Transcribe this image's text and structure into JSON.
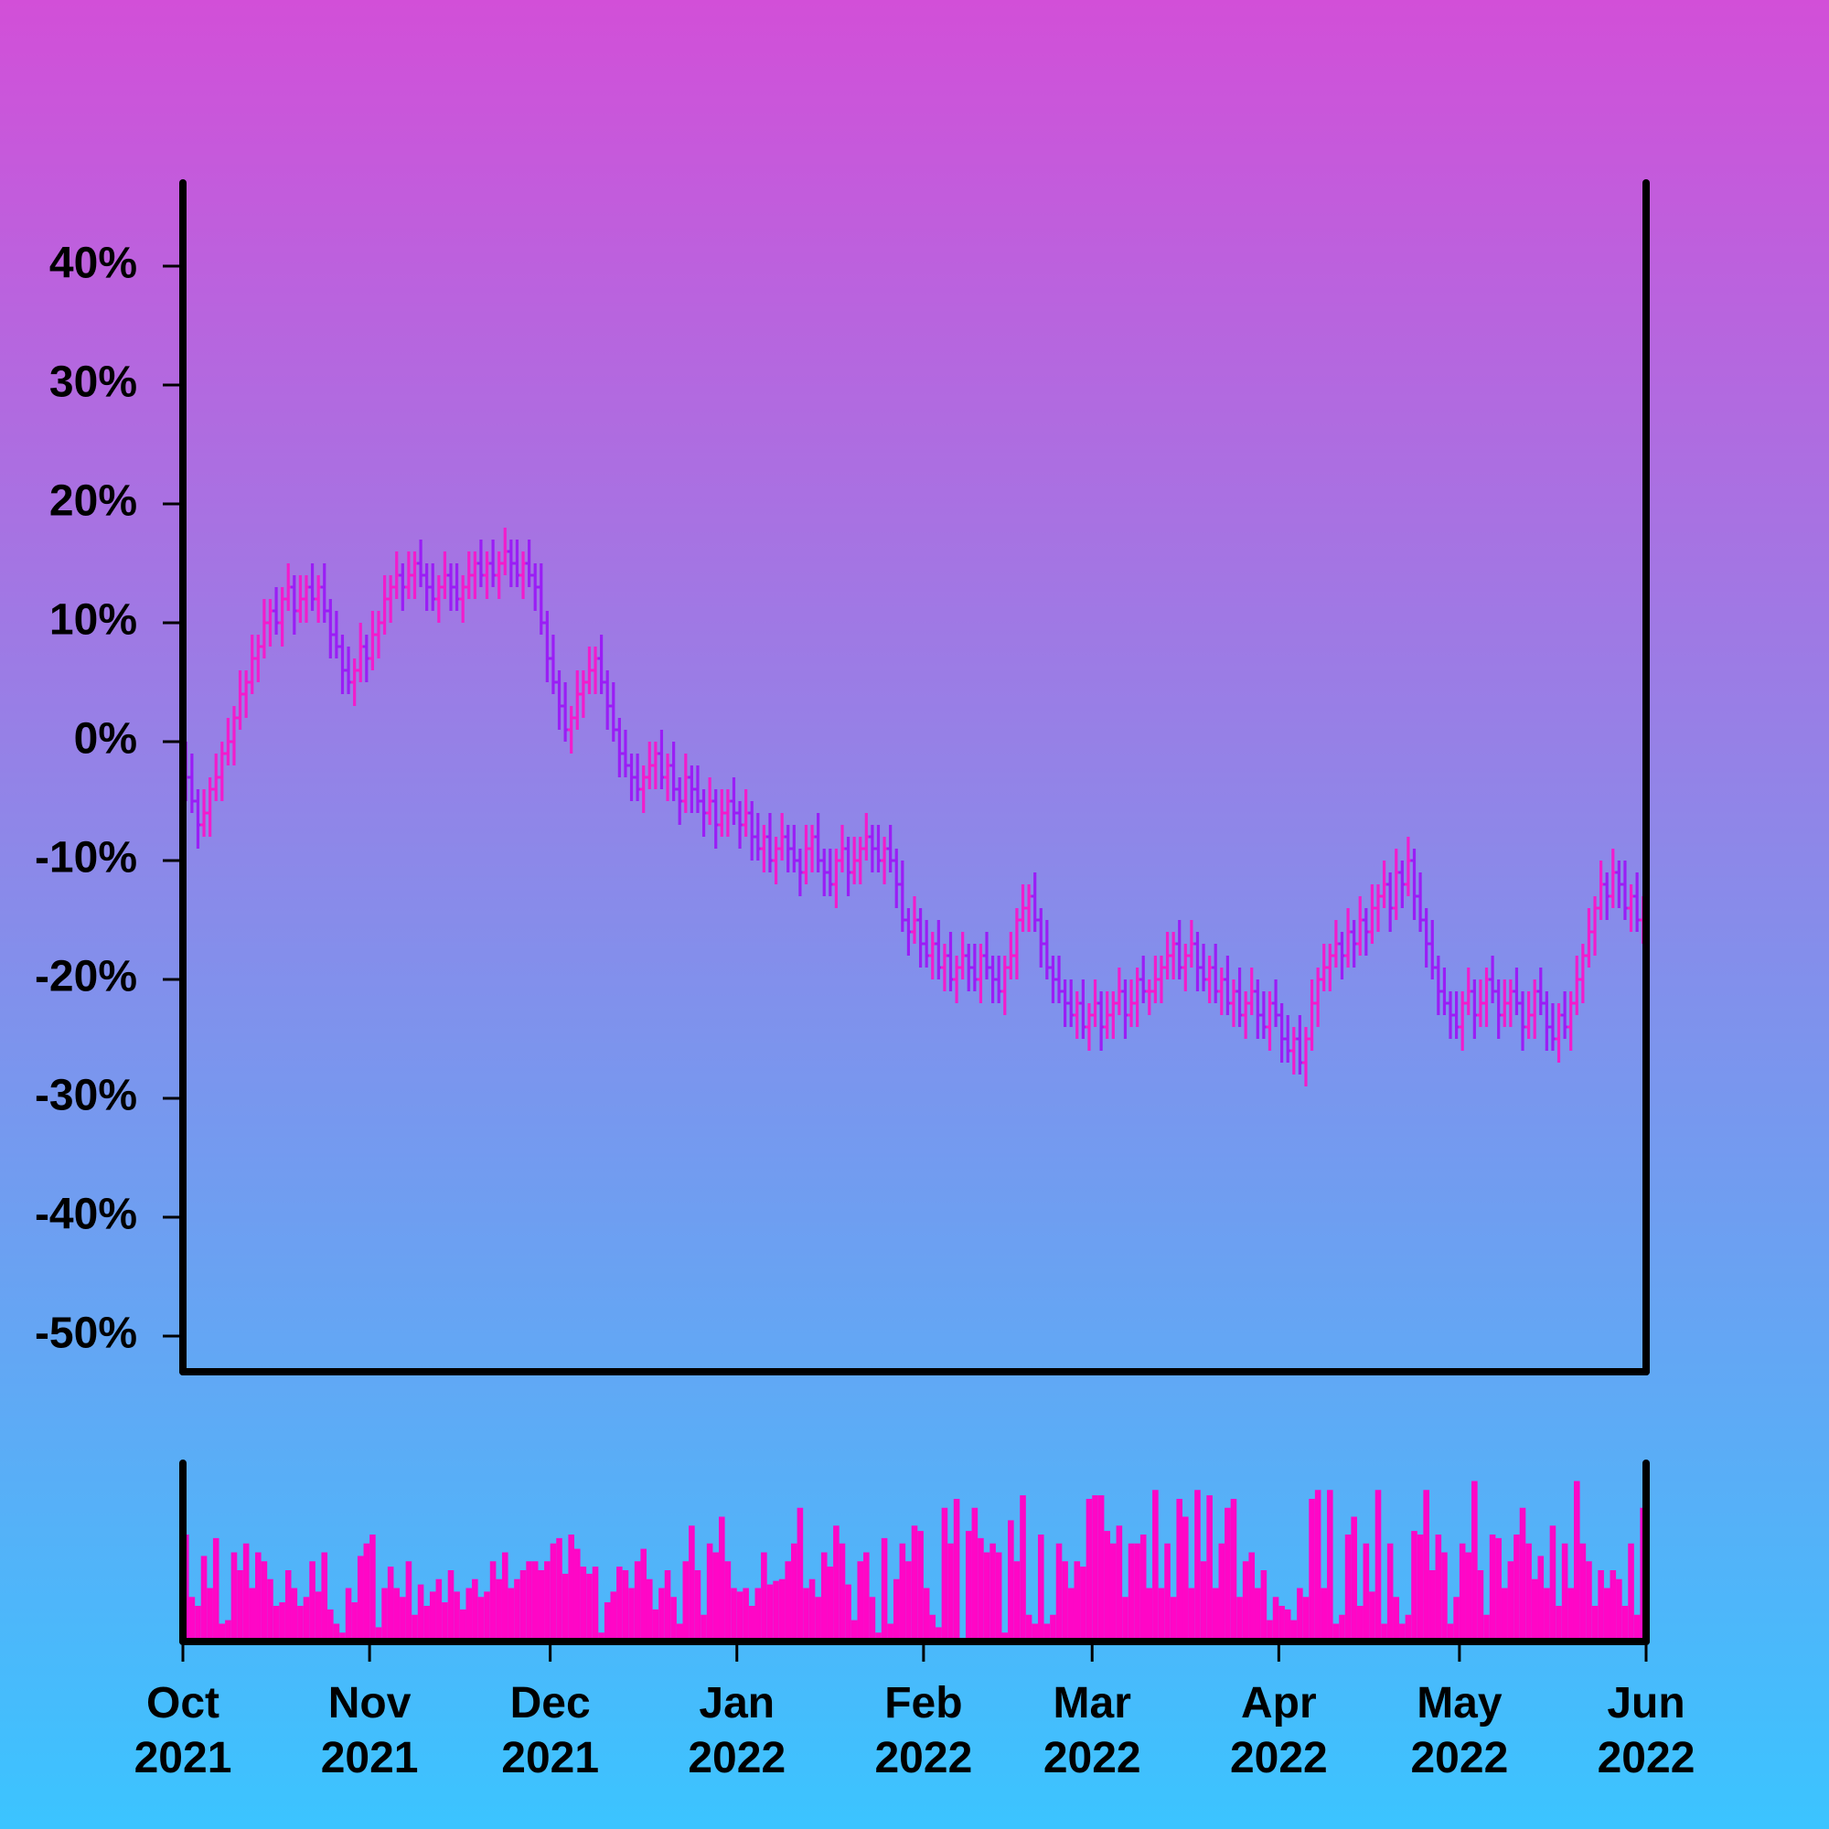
{
  "chart_data": [
    {
      "type": "ohlc",
      "up_color": "#f21ccc",
      "down_color": "#9a1ef5",
      "xlim": [
        0,
        243
      ],
      "ylim": [
        -53,
        47
      ],
      "yticks": [
        {
          "value": 40,
          "label": "40%"
        },
        {
          "value": 30,
          "label": "30%"
        },
        {
          "value": 20,
          "label": "20%"
        },
        {
          "value": 10,
          "label": "10%"
        },
        {
          "value": 0,
          "label": "0%"
        },
        {
          "value": -10,
          "label": "-10%"
        },
        {
          "value": -20,
          "label": "-20%"
        },
        {
          "value": -30,
          "label": "-30%"
        },
        {
          "value": -40,
          "label": "-40%"
        },
        {
          "value": -50,
          "label": "-50%"
        }
      ],
      "open": [
        -1,
        -3,
        -5,
        -7,
        -6,
        -4,
        -3,
        -1,
        0,
        2,
        4,
        5,
        7,
        8,
        10,
        11,
        10,
        12,
        13,
        11,
        12,
        13,
        12,
        13,
        11,
        9,
        8,
        6,
        5,
        6,
        8,
        7,
        9,
        10,
        12,
        13,
        14,
        13,
        14,
        15,
        14,
        13,
        12,
        13,
        14,
        13,
        12,
        13,
        14,
        15,
        14,
        15,
        14,
        15,
        16,
        15,
        14,
        15,
        14,
        13,
        10,
        7,
        5,
        3,
        1,
        2,
        4,
        5,
        6,
        7,
        5,
        3,
        1,
        -1,
        -2,
        -3,
        -4,
        -3,
        -2,
        -1,
        -3,
        -2,
        -4,
        -5,
        -3,
        -4,
        -5,
        -6,
        -5,
        -7,
        -6,
        -5,
        -6,
        -7,
        -6,
        -8,
        -9,
        -8,
        -10,
        -9,
        -8,
        -9,
        -10,
        -11,
        -9,
        -8,
        -10,
        -11,
        -12,
        -10,
        -9,
        -11,
        -10,
        -9,
        -8,
        -9,
        -10,
        -9,
        -10,
        -12,
        -15,
        -16,
        -15,
        -17,
        -18,
        -17,
        -19,
        -18,
        -20,
        -19,
        -18,
        -19,
        -20,
        -18,
        -19,
        -20,
        -21,
        -19,
        -18,
        -15,
        -14,
        -13,
        -15,
        -17,
        -19,
        -20,
        -21,
        -22,
        -23,
        -22,
        -24,
        -23,
        -22,
        -24,
        -23,
        -22,
        -21,
        -23,
        -22,
        -20,
        -21,
        -21,
        -20,
        -19,
        -18,
        -17,
        -19,
        -18,
        -17,
        -19,
        -20,
        -19,
        -21,
        -20,
        -22,
        -21,
        -23,
        -22,
        -21,
        -23,
        -24,
        -22,
        -23,
        -25,
        -26,
        -25,
        -27,
        -25,
        -22,
        -20,
        -19,
        -18,
        -17,
        -18,
        -16,
        -17,
        -15,
        -16,
        -14,
        -13,
        -12,
        -14,
        -11,
        -12,
        -10,
        -13,
        -15,
        -17,
        -19,
        -21,
        -22,
        -23,
        -24,
        -22,
        -21,
        -23,
        -22,
        -20,
        -21,
        -23,
        -22,
        -21,
        -22,
        -24,
        -23,
        -21,
        -22,
        -24,
        -25,
        -23,
        -24,
        -22,
        -20,
        -18,
        -16,
        -14,
        -12,
        -13,
        -11,
        -12,
        -14,
        -13,
        -15
      ],
      "high": [
        0,
        -1,
        -4,
        -4,
        -3,
        -1,
        0,
        2,
        3,
        6,
        6,
        9,
        9,
        12,
        12,
        13,
        13,
        15,
        14,
        14,
        14,
        15,
        14,
        15,
        12,
        11,
        9,
        8,
        7,
        10,
        9,
        11,
        11,
        14,
        14,
        16,
        15,
        16,
        16,
        17,
        15,
        15,
        14,
        16,
        15,
        15,
        14,
        16,
        16,
        17,
        16,
        17,
        16,
        18,
        17,
        17,
        16,
        17,
        15,
        15,
        11,
        9,
        6,
        5,
        3,
        6,
        6,
        8,
        8,
        9,
        6,
        5,
        2,
        1,
        -1,
        -1,
        -2,
        0,
        0,
        1,
        -1,
        0,
        -3,
        -1,
        -2,
        -2,
        -4,
        -3,
        -4,
        -4,
        -4,
        -3,
        -5,
        -4,
        -5,
        -6,
        -7,
        -6,
        -8,
        -6,
        -7,
        -7,
        -9,
        -7,
        -7,
        -6,
        -9,
        -9,
        -9,
        -7,
        -8,
        -8,
        -8,
        -6,
        -7,
        -7,
        -8,
        -7,
        -9,
        -10,
        -14,
        -13,
        -14,
        -15,
        -16,
        -15,
        -17,
        -16,
        -18,
        -16,
        -17,
        -17,
        -17,
        -16,
        -18,
        -18,
        -18,
        -16,
        -14,
        -12,
        -12,
        -11,
        -14,
        -15,
        -18,
        -18,
        -20,
        -20,
        -21,
        -20,
        -22,
        -20,
        -21,
        -21,
        -21,
        -19,
        -20,
        -20,
        -19,
        -18,
        -20,
        -18,
        -18,
        -16,
        -16,
        -15,
        -17,
        -15,
        -16,
        -17,
        -18,
        -17,
        -19,
        -18,
        -20,
        -19,
        -21,
        -19,
        -20,
        -21,
        -21,
        -20,
        -22,
        -23,
        -24,
        -23,
        -24,
        -20,
        -19,
        -17,
        -17,
        -15,
        -16,
        -14,
        -15,
        -13,
        -14,
        -12,
        -12,
        -10,
        -11,
        -9,
        -10,
        -8,
        -9,
        -11,
        -14,
        -15,
        -18,
        -19,
        -21,
        -21,
        -21,
        -19,
        -20,
        -20,
        -19,
        -18,
        -20,
        -20,
        -20,
        -19,
        -21,
        -21,
        -20,
        -19,
        -21,
        -22,
        -22,
        -21,
        -21,
        -18,
        -17,
        -14,
        -13,
        -10,
        -11,
        -9,
        -10,
        -10,
        -12,
        -11,
        -13
      ],
      "low": [
        -5,
        -6,
        -9,
        -8,
        -8,
        -5,
        -5,
        -2,
        -2,
        1,
        2,
        4,
        5,
        7,
        8,
        9,
        8,
        11,
        9,
        10,
        10,
        11,
        10,
        10,
        7,
        7,
        4,
        4,
        3,
        5,
        5,
        6,
        7,
        9,
        10,
        12,
        11,
        12,
        12,
        13,
        11,
        11,
        10,
        12,
        11,
        11,
        10,
        12,
        12,
        13,
        12,
        13,
        12,
        14,
        13,
        13,
        12,
        13,
        11,
        9,
        5,
        4,
        1,
        0,
        -1,
        1,
        2,
        4,
        4,
        4,
        1,
        0,
        -3,
        -3,
        -5,
        -5,
        -6,
        -4,
        -4,
        -4,
        -5,
        -5,
        -7,
        -6,
        -6,
        -6,
        -8,
        -7,
        -9,
        -8,
        -8,
        -7,
        -9,
        -8,
        -10,
        -10,
        -11,
        -11,
        -12,
        -10,
        -11,
        -11,
        -13,
        -12,
        -11,
        -11,
        -13,
        -13,
        -14,
        -11,
        -13,
        -12,
        -12,
        -10,
        -11,
        -11,
        -12,
        -11,
        -14,
        -16,
        -18,
        -17,
        -19,
        -19,
        -20,
        -20,
        -21,
        -21,
        -22,
        -20,
        -21,
        -21,
        -22,
        -20,
        -22,
        -22,
        -23,
        -20,
        -20,
        -16,
        -16,
        -16,
        -19,
        -20,
        -22,
        -22,
        -24,
        -24,
        -25,
        -25,
        -26,
        -24,
        -26,
        -25,
        -25,
        -23,
        -25,
        -24,
        -24,
        -22,
        -23,
        -22,
        -22,
        -20,
        -20,
        -20,
        -21,
        -19,
        -21,
        -21,
        -22,
        -22,
        -23,
        -23,
        -24,
        -24,
        -25,
        -23,
        -25,
        -25,
        -26,
        -24,
        -27,
        -27,
        -28,
        -28,
        -29,
        -26,
        -24,
        -21,
        -21,
        -19,
        -20,
        -19,
        -19,
        -18,
        -18,
        -17,
        -16,
        -14,
        -16,
        -15,
        -14,
        -13,
        -15,
        -16,
        -19,
        -20,
        -23,
        -23,
        -25,
        -25,
        -26,
        -23,
        -25,
        -24,
        -24,
        -22,
        -25,
        -24,
        -24,
        -23,
        -26,
        -25,
        -25,
        -23,
        -26,
        -26,
        -27,
        -25,
        -26,
        -23,
        -22,
        -19,
        -18,
        -15,
        -15,
        -14,
        -14,
        -15,
        -16,
        -16,
        -17
      ],
      "close": [
        -3,
        -5,
        -7,
        -6,
        -4,
        -3,
        -1,
        0,
        2,
        4,
        5,
        7,
        8,
        10,
        11,
        10,
        12,
        13,
        11,
        12,
        13,
        12,
        13,
        11,
        9,
        8,
        6,
        5,
        6,
        8,
        7,
        9,
        10,
        12,
        13,
        14,
        13,
        14,
        15,
        14,
        13,
        12,
        13,
        14,
        13,
        12,
        13,
        14,
        15,
        14,
        15,
        14,
        15,
        16,
        15,
        14,
        15,
        14,
        13,
        10,
        7,
        5,
        3,
        1,
        2,
        4,
        5,
        6,
        7,
        5,
        3,
        1,
        -1,
        -2,
        -3,
        -4,
        -3,
        -2,
        -1,
        -3,
        -2,
        -4,
        -5,
        -3,
        -4,
        -5,
        -6,
        -5,
        -7,
        -6,
        -5,
        -6,
        -7,
        -6,
        -8,
        -9,
        -8,
        -10,
        -9,
        -8,
        -9,
        -10,
        -11,
        -9,
        -8,
        -10,
        -11,
        -12,
        -10,
        -9,
        -11,
        -10,
        -9,
        -8,
        -9,
        -10,
        -9,
        -10,
        -12,
        -15,
        -16,
        -15,
        -17,
        -18,
        -17,
        -19,
        -18,
        -20,
        -19,
        -18,
        -19,
        -20,
        -18,
        -19,
        -20,
        -21,
        -19,
        -18,
        -15,
        -14,
        -13,
        -15,
        -17,
        -19,
        -20,
        -21,
        -22,
        -23,
        -22,
        -24,
        -23,
        -22,
        -24,
        -23,
        -22,
        -21,
        -23,
        -22,
        -20,
        -21,
        -21,
        -20,
        -19,
        -18,
        -17,
        -19,
        -18,
        -17,
        -19,
        -20,
        -19,
        -21,
        -20,
        -22,
        -21,
        -23,
        -22,
        -21,
        -23,
        -24,
        -22,
        -23,
        -25,
        -26,
        -25,
        -27,
        -25,
        -22,
        -20,
        -19,
        -18,
        -17,
        -18,
        -16,
        -17,
        -15,
        -16,
        -14,
        -13,
        -12,
        -14,
        -11,
        -12,
        -10,
        -13,
        -15,
        -17,
        -19,
        -21,
        -22,
        -23,
        -24,
        -22,
        -21,
        -23,
        -22,
        -20,
        -21,
        -23,
        -22,
        -21,
        -22,
        -24,
        -23,
        -21,
        -22,
        -24,
        -25,
        -23,
        -24,
        -22,
        -20,
        -18,
        -16,
        -14,
        -12,
        -13,
        -11,
        -12,
        -14,
        -13,
        -15,
        -14
      ]
    },
    {
      "type": "bar",
      "color": "#ff06c6",
      "xlim": [
        0,
        243
      ],
      "ylim": [
        0,
        100
      ],
      "xticks": [
        {
          "value": 0,
          "label": "Oct\n2021"
        },
        {
          "value": 31,
          "label": "Nov\n2021"
        },
        {
          "value": 61,
          "label": "Dec\n2021"
        },
        {
          "value": 92,
          "label": "Jan\n2022"
        },
        {
          "value": 123,
          "label": "Feb\n2022"
        },
        {
          "value": 151,
          "label": "Mar\n2022"
        },
        {
          "value": 182,
          "label": "Apr\n2022"
        },
        {
          "value": 212,
          "label": "May\n2022"
        },
        {
          "value": 243,
          "label": "Jun\n2022"
        }
      ],
      "values": [
        60,
        25,
        20,
        48,
        30,
        58,
        10,
        12,
        50,
        40,
        55,
        30,
        50,
        45,
        35,
        20,
        22,
        40,
        30,
        20,
        25,
        45,
        28,
        50,
        18,
        10,
        5,
        30,
        22,
        48,
        55,
        60,
        8,
        30,
        42,
        30,
        25,
        45,
        15,
        32,
        20,
        28,
        35,
        22,
        40,
        28,
        18,
        30,
        35,
        25,
        28,
        45,
        35,
        50,
        30,
        35,
        40,
        45,
        45,
        40,
        45,
        55,
        58,
        38,
        60,
        52,
        42,
        38,
        42,
        5,
        22,
        28,
        42,
        40,
        30,
        45,
        52,
        35,
        18,
        30,
        40,
        25,
        10,
        45,
        65,
        40,
        15,
        55,
        50,
        70,
        45,
        30,
        28,
        30,
        20,
        30,
        50,
        32,
        34,
        35,
        45,
        55,
        75,
        30,
        35,
        25,
        50,
        42,
        65,
        55,
        32,
        12,
        45,
        50,
        25,
        5,
        58,
        10,
        35,
        55,
        45,
        65,
        62,
        30,
        15,
        8,
        75,
        55,
        80,
        2,
        62,
        75,
        58,
        50,
        55,
        50,
        5,
        68,
        45,
        82,
        15,
        10,
        60,
        10,
        15,
        55,
        45,
        30,
        45,
        42,
        80,
        82,
        82,
        62,
        55,
        65,
        25,
        55,
        55,
        60,
        30,
        85,
        30,
        55,
        25,
        80,
        70,
        30,
        85,
        45,
        82,
        30,
        55,
        75,
        80,
        25,
        45,
        50,
        30,
        40,
        12,
        25,
        20,
        18,
        12,
        30,
        25,
        80,
        85,
        30,
        85,
        10,
        15,
        60,
        70,
        20,
        55,
        28,
        85,
        10,
        55,
        25,
        10,
        15,
        62,
        60,
        85,
        40,
        60,
        50,
        10,
        25,
        55,
        50,
        90,
        40,
        15,
        60,
        58,
        30,
        45,
        60,
        75,
        55,
        35,
        48,
        30,
        65,
        20,
        55,
        30,
        90,
        55,
        45,
        20,
        40,
        30,
        40,
        35,
        20,
        55,
        15,
        75
      ]
    }
  ]
}
